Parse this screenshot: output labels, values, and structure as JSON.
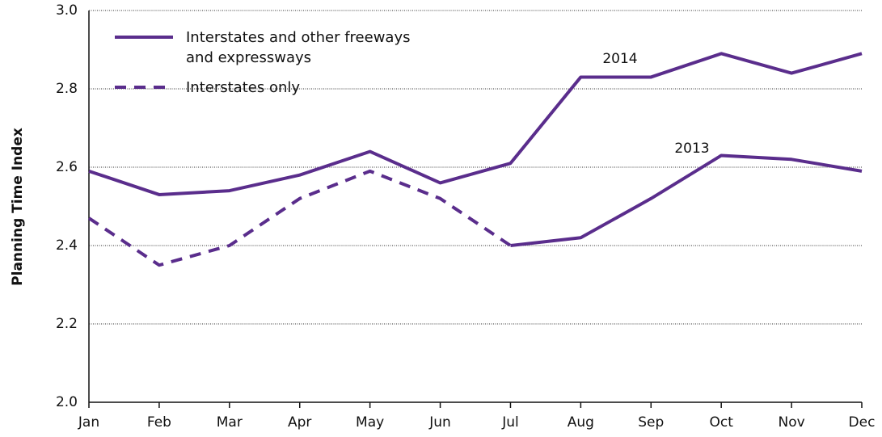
{
  "chart_data": {
    "type": "line",
    "y_label": "Planning Time Index",
    "categories": [
      "Jan",
      "Feb",
      "Mar",
      "Apr",
      "May",
      "Jun",
      "Jul",
      "Aug",
      "Sep",
      "Oct",
      "Nov",
      "Dec"
    ],
    "series": [
      {
        "name": "Interstates and other freeways and expressways",
        "label": "2014",
        "color": "#5a2d8c",
        "dash": false,
        "values": [
          2.59,
          2.53,
          2.54,
          2.58,
          2.64,
          2.56,
          2.61,
          2.83,
          2.83,
          2.89,
          2.84,
          2.89
        ]
      },
      {
        "label": "2013",
        "color": "#5a2d8c",
        "dash": false,
        "values": [
          null,
          null,
          null,
          null,
          null,
          null,
          2.4,
          2.42,
          2.52,
          2.63,
          2.62,
          2.59
        ]
      },
      {
        "name": "Interstates only",
        "color": "#5a2d8c",
        "dash": true,
        "values": [
          2.47,
          2.35,
          2.4,
          2.52,
          2.59,
          2.52,
          2.4,
          null,
          null,
          null,
          null,
          null
        ]
      }
    ],
    "ylim": [
      2.0,
      3.0
    ],
    "yticks": [
      {
        "value": 2.0,
        "label": "2.0"
      },
      2.2,
      2.4,
      2.6,
      2.8,
      {
        "value": 3.0,
        "label": "3.0"
      }
    ],
    "grid": true
  }
}
